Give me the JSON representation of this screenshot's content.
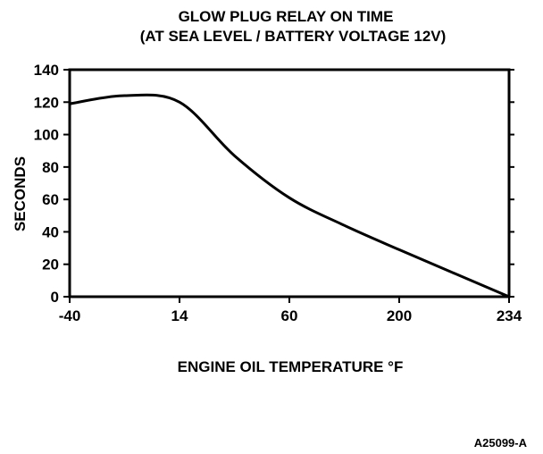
{
  "chart_data": {
    "type": "line",
    "title": "GLOW PLUG RELAY ON TIME",
    "subtitle": "(AT SEA LEVEL / BATTERY VOLTAGE 12V)",
    "xlabel": "ENGINE OIL TEMPERATURE °F",
    "ylabel": "SECONDS",
    "x_ticks": [
      "-40",
      "14",
      "60",
      "200",
      "234"
    ],
    "y_ticks": [
      0,
      20,
      40,
      60,
      80,
      100,
      120,
      140
    ],
    "ylim": [
      0,
      140
    ],
    "x_scale": "categorical (evenly spaced tick labels)",
    "grid": false,
    "legend": "none",
    "series": [
      {
        "points": [
          {
            "x": "-40",
            "y": 119
          },
          {
            "x": "-13",
            "y": 124
          },
          {
            "x": "14",
            "y": 120
          },
          {
            "x": "37",
            "y": 87
          },
          {
            "x": "60",
            "y": 61
          },
          {
            "x": "130",
            "y": 44
          },
          {
            "x": "200",
            "y": 29
          },
          {
            "x": "234",
            "y": 0
          }
        ]
      }
    ]
  },
  "figure_id": "A25099-A",
  "colors": {
    "line": "#000000",
    "background": "#ffffff"
  }
}
